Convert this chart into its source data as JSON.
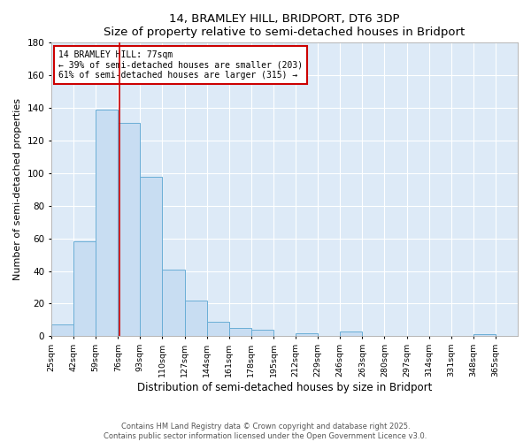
{
  "title": "14, BRAMLEY HILL, BRIDPORT, DT6 3DP",
  "subtitle": "Size of property relative to semi-detached houses in Bridport",
  "xlabel": "Distribution of semi-detached houses by size in Bridport",
  "ylabel": "Number of semi-detached properties",
  "bin_labels": [
    "25sqm",
    "42sqm",
    "59sqm",
    "76sqm",
    "93sqm",
    "110sqm",
    "127sqm",
    "144sqm",
    "161sqm",
    "178sqm",
    "195sqm",
    "212sqm",
    "229sqm",
    "246sqm",
    "263sqm",
    "280sqm",
    "297sqm",
    "314sqm",
    "331sqm",
    "348sqm",
    "365sqm"
  ],
  "bin_edges": [
    25,
    42,
    59,
    76,
    93,
    110,
    127,
    144,
    161,
    178,
    195,
    212,
    229,
    246,
    263,
    280,
    297,
    314,
    331,
    348,
    365
  ],
  "counts": [
    7,
    58,
    139,
    131,
    98,
    41,
    22,
    9,
    5,
    4,
    0,
    2,
    0,
    3,
    0,
    0,
    0,
    0,
    0,
    1
  ],
  "bar_color": "#c8ddf2",
  "bar_edge_color": "#6aaed6",
  "vline_x": 77,
  "vline_color": "#cc0000",
  "annotation_title": "14 BRAMLEY HILL: 77sqm",
  "annotation_line1": "← 39% of semi-detached houses are smaller (203)",
  "annotation_line2": "61% of semi-detached houses are larger (315) →",
  "annotation_box_color": "#ffffff",
  "annotation_box_edge": "#cc0000",
  "ylim": [
    0,
    180
  ],
  "yticks": [
    0,
    20,
    40,
    60,
    80,
    100,
    120,
    140,
    160,
    180
  ],
  "footer_line1": "Contains HM Land Registry data © Crown copyright and database right 2025.",
  "footer_line2": "Contains public sector information licensed under the Open Government Licence v3.0.",
  "fig_background": "#ffffff",
  "plot_bg_color": "#ddeaf7"
}
